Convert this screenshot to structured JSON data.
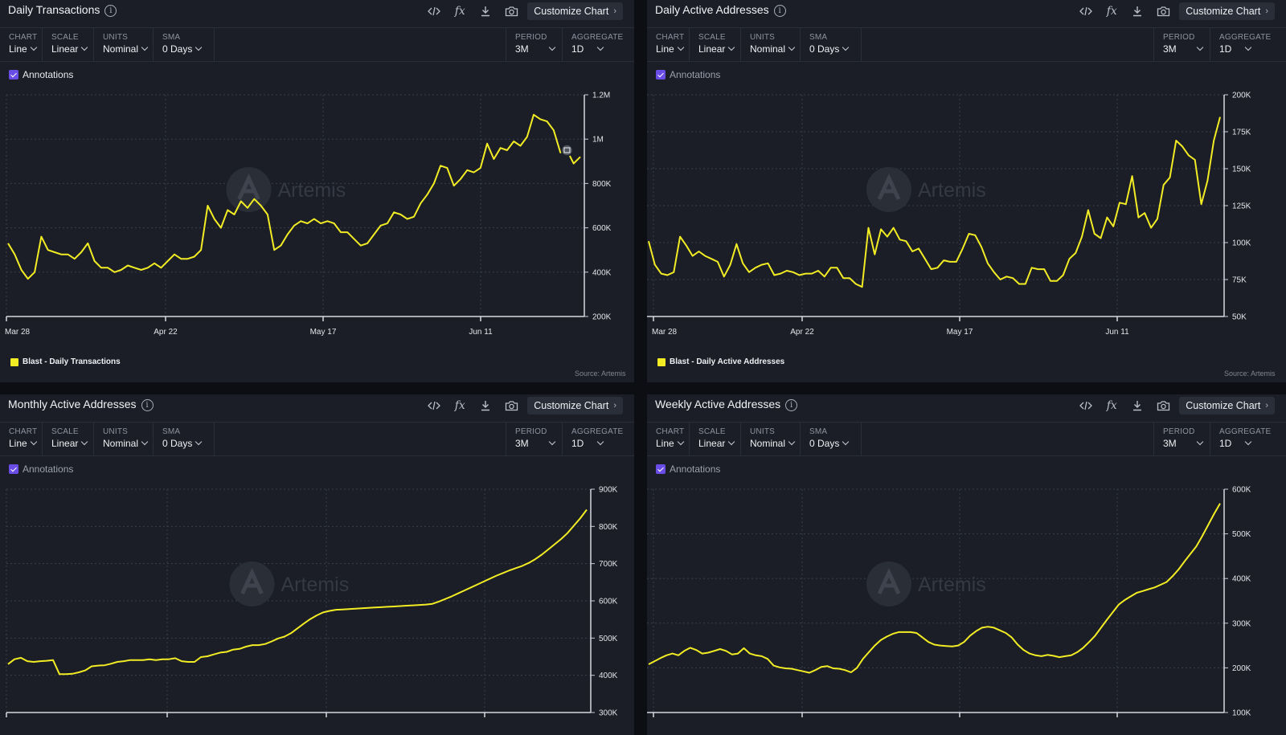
{
  "controls": {
    "chart_label": "CHART",
    "chart_value": "Line",
    "scale_label": "SCALE",
    "scale_value": "Linear",
    "units_label": "UNITS",
    "units_value": "Nominal",
    "sma_label": "SMA",
    "sma_value": "0 Days",
    "period_label": "PERIOD",
    "period_value": "3M",
    "aggregate_label": "AGGREGATE",
    "aggregate_value": "1D"
  },
  "toolbar": {
    "customize_label": "Customize Chart",
    "fx_label": "fx"
  },
  "annotations_label": "Annotations",
  "watermark": "Artemis",
  "source": "Source: Artemis",
  "colors": {
    "line": "#f2ec25",
    "panel": "#1b1e26",
    "accent": "#6a4de6"
  },
  "panels": [
    {
      "title": "Daily Transactions",
      "legend": "Blast - Daily Transactions"
    },
    {
      "title": "Daily Active Addresses",
      "legend": "Blast - Daily Active Addresses"
    },
    {
      "title": "Monthly Active Addresses",
      "legend": ""
    },
    {
      "title": "Weekly Active Addresses",
      "legend": ""
    }
  ],
  "chart_data": [
    {
      "type": "line",
      "title": "Daily Transactions",
      "x_ticks": [
        "Mar 28",
        "Apr 22",
        "May 17",
        "Jun 11"
      ],
      "y_ticks": [
        "200K",
        "400K",
        "600K",
        "800K",
        "1M",
        "1.2M"
      ],
      "ylim": [
        200000,
        1200000
      ],
      "grid": true,
      "series": [
        {
          "name": "Blast - Daily Transactions",
          "values": [
            530000,
            480000,
            410000,
            370000,
            400000,
            560000,
            500000,
            490000,
            480000,
            480000,
            460000,
            490000,
            530000,
            450000,
            420000,
            420000,
            400000,
            410000,
            430000,
            420000,
            410000,
            420000,
            440000,
            420000,
            450000,
            480000,
            460000,
            460000,
            470000,
            500000,
            700000,
            640000,
            600000,
            680000,
            660000,
            720000,
            690000,
            730000,
            700000,
            660000,
            500000,
            520000,
            570000,
            610000,
            630000,
            620000,
            640000,
            620000,
            630000,
            620000,
            580000,
            580000,
            550000,
            520000,
            530000,
            570000,
            610000,
            620000,
            670000,
            660000,
            640000,
            650000,
            710000,
            750000,
            800000,
            880000,
            870000,
            790000,
            820000,
            860000,
            850000,
            870000,
            980000,
            910000,
            960000,
            950000,
            990000,
            970000,
            1010000,
            1110000,
            1090000,
            1080000,
            1040000,
            940000,
            950000,
            890000,
            920000
          ]
        }
      ]
    },
    {
      "type": "line",
      "title": "Daily Active Addresses",
      "x_ticks": [
        "Mar 28",
        "Apr 22",
        "May 17",
        "Jun 11"
      ],
      "y_ticks": [
        "50K",
        "75K",
        "100K",
        "125K",
        "150K",
        "175K",
        "200K"
      ],
      "ylim": [
        50000,
        200000
      ],
      "grid": true,
      "series": [
        {
          "name": "Blast - Daily Active Addresses",
          "values": [
            101000,
            85000,
            79000,
            78000,
            80000,
            104000,
            98000,
            91000,
            94000,
            91000,
            89000,
            87000,
            77000,
            85000,
            99000,
            86000,
            80000,
            83000,
            85000,
            86000,
            78000,
            79000,
            81000,
            80000,
            78000,
            79000,
            79000,
            81000,
            77000,
            83000,
            83000,
            76000,
            76000,
            72000,
            70000,
            110000,
            92000,
            109000,
            104000,
            110000,
            102000,
            101000,
            94000,
            96000,
            89000,
            82000,
            83000,
            88000,
            87000,
            87000,
            96000,
            106000,
            105000,
            97000,
            86000,
            80000,
            75000,
            77000,
            76000,
            72000,
            72000,
            83000,
            82000,
            82000,
            74000,
            74000,
            78000,
            89000,
            93000,
            104000,
            122000,
            106000,
            103000,
            117000,
            111000,
            127000,
            126000,
            145000,
            117000,
            120000,
            110000,
            116000,
            139000,
            144000,
            169000,
            165000,
            159000,
            156000,
            126000,
            142000,
            169000,
            185000
          ]
        }
      ]
    },
    {
      "type": "line",
      "title": "Monthly Active Addresses",
      "y_ticks": [
        "300K",
        "400K",
        "500K",
        "600K",
        "700K",
        "800K",
        "900K"
      ],
      "ylim": [
        300000,
        900000
      ],
      "grid": true,
      "series": [
        {
          "values": [
            430000,
            443000,
            447000,
            438000,
            436000,
            438000,
            439000,
            441000,
            403000,
            403000,
            404000,
            408000,
            413000,
            424000,
            426000,
            427000,
            431000,
            436000,
            438000,
            441000,
            441000,
            441000,
            443000,
            441000,
            443000,
            443000,
            446000,
            438000,
            436000,
            436000,
            449000,
            451000,
            456000,
            461000,
            463000,
            469000,
            471000,
            477000,
            481000,
            481000,
            484000,
            491000,
            499000,
            504000,
            513000,
            526000,
            539000,
            551000,
            561000,
            569000,
            573000,
            576000,
            577000,
            578000,
            579000,
            580000,
            581000,
            582000,
            583000,
            584000,
            585000,
            586000,
            587000,
            588000,
            589000,
            590000,
            592000,
            598000,
            605000,
            612000,
            620000,
            628000,
            636000,
            644000,
            652000,
            660000,
            668000,
            675000,
            682000,
            688000,
            694000,
            702000,
            712000,
            724000,
            738000,
            752000,
            766000,
            782000,
            802000,
            822000,
            845000
          ]
        }
      ]
    },
    {
      "type": "line",
      "title": "Weekly Active Addresses",
      "y_ticks": [
        "100K",
        "200K",
        "300K",
        "400K",
        "500K",
        "600K"
      ],
      "ylim": [
        100000,
        600000
      ],
      "grid": true,
      "series": [
        {
          "values": [
            208000,
            215000,
            222000,
            228000,
            232000,
            228000,
            238000,
            245000,
            240000,
            232000,
            234000,
            238000,
            242000,
            238000,
            230000,
            232000,
            244000,
            232000,
            228000,
            226000,
            220000,
            205000,
            201000,
            199000,
            198000,
            195000,
            192000,
            189000,
            195000,
            202000,
            204000,
            199000,
            198000,
            195000,
            190000,
            200000,
            220000,
            235000,
            250000,
            262000,
            270000,
            276000,
            280000,
            280000,
            280000,
            278000,
            268000,
            258000,
            252000,
            250000,
            249000,
            248000,
            250000,
            258000,
            272000,
            282000,
            290000,
            292000,
            290000,
            284000,
            278000,
            268000,
            252000,
            240000,
            232000,
            228000,
            226000,
            229000,
            227000,
            224000,
            226000,
            228000,
            235000,
            245000,
            258000,
            272000,
            290000,
            308000,
            325000,
            342000,
            352000,
            360000,
            368000,
            372000,
            376000,
            380000,
            386000,
            392000,
            405000,
            420000,
            438000,
            455000,
            472000,
            495000,
            520000,
            545000,
            568000
          ]
        }
      ]
    }
  ]
}
